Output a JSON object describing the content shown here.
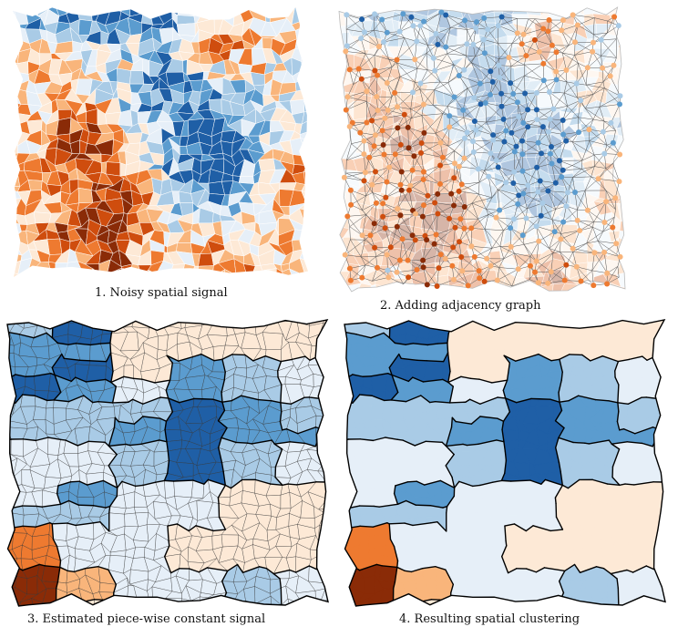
{
  "panels": [
    {
      "caption": "1. Noisy spatial signal"
    },
    {
      "caption": "2. Adding adjacency graph"
    },
    {
      "caption": "3. Estimated piece-wise constant signal"
    },
    {
      "caption": "4. Resulting spatial clustering"
    }
  ],
  "palette": {
    "dark_blue": "#1f5fa6",
    "mid_blue": "#5b9ccf",
    "light_blue": "#a9cbe6",
    "pale_blue": "#e6eff8",
    "pale_orange": "#fde9d6",
    "light_orange": "#f9b57b",
    "orange": "#ee7a30",
    "dark_orange": "#cf4d0e",
    "brown": "#8a2b07",
    "edge_gray": "#555555"
  }
}
